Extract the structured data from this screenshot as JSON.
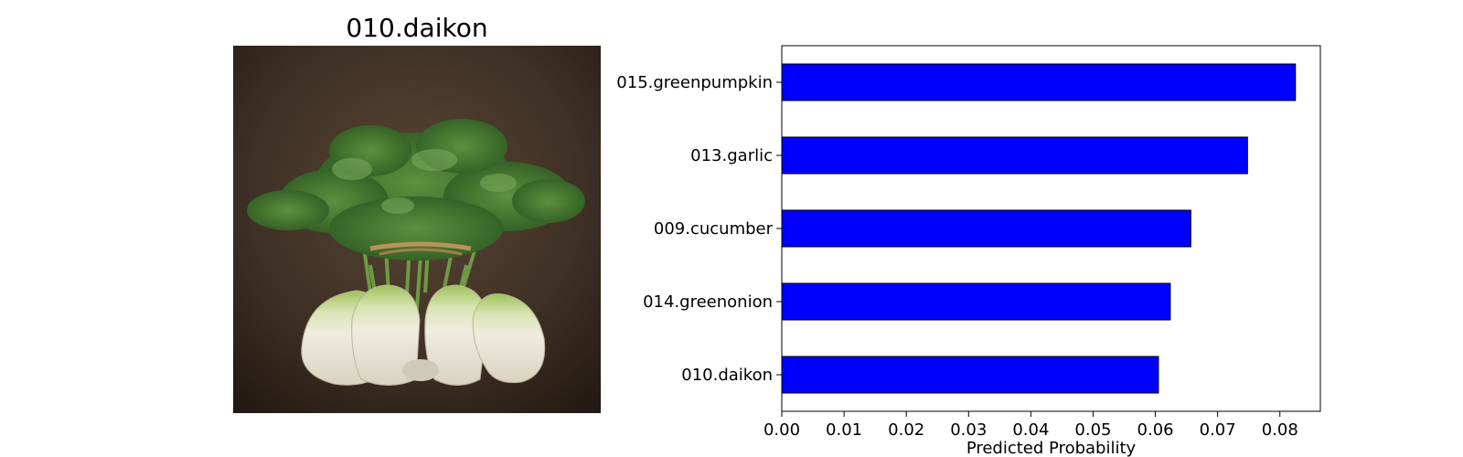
{
  "image_panel": {
    "title": "010.daikon"
  },
  "chart_data": {
    "type": "bar",
    "orientation": "horizontal",
    "categories": [
      "015.greenpumpkin",
      "013.garlic",
      "009.cucumber",
      "014.greenonion",
      "010.daikon"
    ],
    "values": [
      0.0825,
      0.0748,
      0.0657,
      0.0624,
      0.0605
    ],
    "title": "",
    "xlabel": "Predicted Probability",
    "ylabel": "",
    "xlim": [
      0,
      0.0865
    ],
    "xticks": [
      0.0,
      0.01,
      0.02,
      0.03,
      0.04,
      0.05,
      0.06,
      0.07,
      0.08
    ],
    "xtick_labels": [
      "0.00",
      "0.01",
      "0.02",
      "0.03",
      "0.04",
      "0.05",
      "0.06",
      "0.07",
      "0.08"
    ],
    "bar_color": "#0000ff",
    "edge_color": "#000000",
    "grid": false,
    "legend": "none"
  }
}
